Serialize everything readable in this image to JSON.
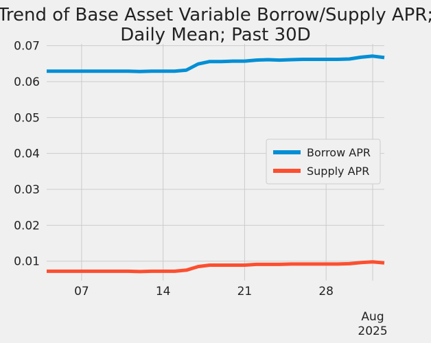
{
  "chart_data": {
    "type": "line",
    "title_lines": [
      "Trend of Base Asset Variable Borrow/Supply APR;",
      "Daily Mean; Past 30D"
    ],
    "xlabel": "",
    "ylabel": "",
    "x_start": "2025-07-04",
    "x_end": "2025-08-02",
    "x": [
      "2025-07-04",
      "2025-07-05",
      "2025-07-06",
      "2025-07-07",
      "2025-07-08",
      "2025-07-09",
      "2025-07-10",
      "2025-07-11",
      "2025-07-12",
      "2025-07-13",
      "2025-07-14",
      "2025-07-15",
      "2025-07-16",
      "2025-07-17",
      "2025-07-18",
      "2025-07-19",
      "2025-07-20",
      "2025-07-21",
      "2025-07-22",
      "2025-07-23",
      "2025-07-24",
      "2025-07-25",
      "2025-07-26",
      "2025-07-27",
      "2025-07-28",
      "2025-07-29",
      "2025-07-30",
      "2025-07-31",
      "2025-08-01",
      "2025-08-02"
    ],
    "ylim": [
      0.0046,
      0.0705
    ],
    "yticks": [
      0.01,
      0.02,
      0.03,
      0.04,
      0.05,
      0.06,
      0.07
    ],
    "ytick_labels": [
      "0.01",
      "0.02",
      "0.03",
      "0.04",
      "0.05",
      "0.06",
      "0.07"
    ],
    "xticks": [
      {
        "date": "2025-07-07",
        "label": "07",
        "sublabel": ""
      },
      {
        "date": "2025-07-14",
        "label": "14",
        "sublabel": ""
      },
      {
        "date": "2025-07-21",
        "label": "21",
        "sublabel": ""
      },
      {
        "date": "2025-07-28",
        "label": "28",
        "sublabel": ""
      },
      {
        "date": "2025-08-01",
        "label": "Aug",
        "sublabel": "2025"
      }
    ],
    "grid": true,
    "legend_position": "center-right",
    "series": [
      {
        "name": "Borrow APR",
        "color": "#008fd5",
        "values": [
          0.0629,
          0.0629,
          0.0629,
          0.0629,
          0.0629,
          0.0629,
          0.0629,
          0.0629,
          0.0628,
          0.0629,
          0.0629,
          0.0629,
          0.0632,
          0.0649,
          0.0656,
          0.0656,
          0.0657,
          0.0657,
          0.066,
          0.0661,
          0.066,
          0.0661,
          0.0662,
          0.0662,
          0.0662,
          0.0662,
          0.0663,
          0.0668,
          0.0671,
          0.0667
        ]
      },
      {
        "name": "Supply APR",
        "color": "#fc4f30",
        "values": [
          0.0072,
          0.0072,
          0.0072,
          0.0072,
          0.0072,
          0.0072,
          0.0072,
          0.0072,
          0.0071,
          0.0072,
          0.0072,
          0.0072,
          0.0075,
          0.0085,
          0.0089,
          0.0089,
          0.0089,
          0.0089,
          0.0091,
          0.0091,
          0.0091,
          0.0092,
          0.0092,
          0.0092,
          0.0092,
          0.0092,
          0.0093,
          0.0096,
          0.0098,
          0.0095
        ]
      }
    ]
  }
}
